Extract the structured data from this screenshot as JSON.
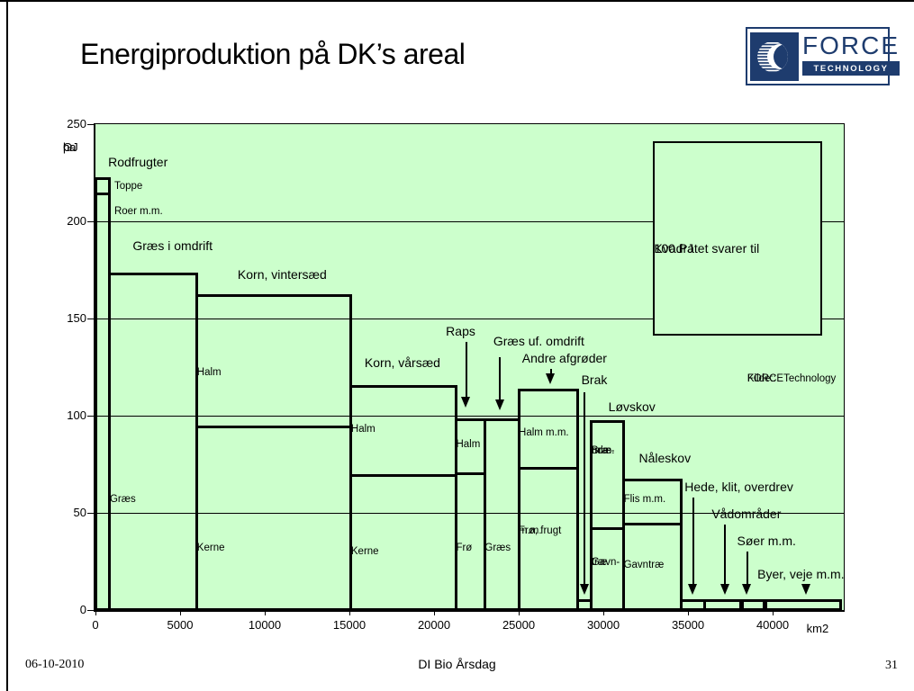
{
  "slide": {
    "title": "Energiproduktion på DK’s areal",
    "footer": {
      "date": "06-10-2010",
      "center": "DI Bio Årsdag",
      "page": "31"
    }
  },
  "logo": {
    "name": "FORCE",
    "sub": "TECHNOLOGY",
    "icon": "globe-icon",
    "navy": "#1e3c6e"
  },
  "chart_data": {
    "type": "bar",
    "subtype": "variable-width-stacked-bar-marimekko",
    "title": "Energiproduktion på DK’s areal",
    "xlabel": "km2",
    "ylabel_lines": [
      "GJ",
      "pr.",
      "ha"
    ],
    "xlim": [
      0,
      44200
    ],
    "ylim": [
      0,
      250
    ],
    "x_ticks": [
      0,
      5000,
      10000,
      15000,
      20000,
      25000,
      30000,
      35000,
      40000
    ],
    "y_ticks": [
      0,
      50,
      100,
      150,
      200,
      250
    ],
    "x_unit_label": "km2",
    "x_unit_pos": 42000,
    "grid": "horizontal",
    "colors": {
      "plot_bg": "#ccffcc",
      "bar_fill": "#ccffcc",
      "line": "#000000"
    },
    "segments": [
      {
        "name": "Rodfrugter",
        "x0": 0,
        "x1": 850,
        "sections": [
          {
            "lines": [
              "Roer m.m."
            ],
            "y0": 0,
            "y1": 214,
            "label_y": 205,
            "outside": true
          },
          {
            "lines": [
              "Toppe"
            ],
            "y0": 214,
            "y1": 222,
            "label_y": 218,
            "outside": true
          }
        ]
      },
      {
        "name": "Græs i omdrift",
        "x0": 850,
        "x1": 6000,
        "sections": [
          {
            "lines": [
              "Græs"
            ],
            "y0": 0,
            "y1": 173,
            "label_y": 57
          }
        ]
      },
      {
        "name": "Korn, vintersæd",
        "x0": 6000,
        "x1": 15100,
        "sections": [
          {
            "lines": [
              "Kerne"
            ],
            "y0": 0,
            "y1": 94,
            "label_y": 32
          },
          {
            "lines": [
              "Halm"
            ],
            "y0": 94,
            "y1": 162,
            "label_y": 122
          }
        ]
      },
      {
        "name": "Korn, vårsæd",
        "x0": 15100,
        "x1": 21300,
        "sections": [
          {
            "lines": [
              "Kerne"
            ],
            "y0": 0,
            "y1": 69,
            "label_y": 30
          },
          {
            "lines": [
              "Halm"
            ],
            "y0": 69,
            "y1": 115,
            "label_y": 93
          }
        ]
      },
      {
        "name": "Raps",
        "x0": 21300,
        "x1": 23000,
        "sections": [
          {
            "lines": [
              "Frø"
            ],
            "y0": 0,
            "y1": 70,
            "label_y": 32
          },
          {
            "lines": [
              "Halm"
            ],
            "y0": 70,
            "y1": 98,
            "label_y": 85
          }
        ]
      },
      {
        "name": "Græs uf. omdrift",
        "x0": 23000,
        "x1": 25000,
        "sections": [
          {
            "lines": [
              "Græs"
            ],
            "y0": 0,
            "y1": 98,
            "label_y": 32
          }
        ]
      },
      {
        "name": "Andre afgrøder",
        "x0": 25000,
        "x1": 28500,
        "sections": [
          {
            "lines": [
              "Frø, frugt",
              "m.m."
            ],
            "y0": 0,
            "y1": 73,
            "label_y": 36
          },
          {
            "lines": [
              "Halm m.m."
            ],
            "y0": 73,
            "y1": 113,
            "label_y": 91
          }
        ]
      },
      {
        "name": "Brak",
        "x0": 28500,
        "x1": 29300,
        "sections": [
          {
            "lines": [],
            "y0": 0,
            "y1": 5
          }
        ]
      },
      {
        "name": "Løvskov",
        "x0": 29300,
        "x1": 31200,
        "sections": [
          {
            "lines": [
              "Gavn-",
              "træ"
            ],
            "y0": 0,
            "y1": 42,
            "label_y": 20
          },
          {
            "lines": [
              "Bræ-",
              "nde",
              "m.m."
            ],
            "y0": 42,
            "y1": 97,
            "label_y": 72
          }
        ]
      },
      {
        "name": "Nåleskov",
        "x0": 31200,
        "x1": 34600,
        "sections": [
          {
            "lines": [
              "Gavntræ"
            ],
            "y0": 0,
            "y1": 44,
            "label_y": 23
          },
          {
            "lines": [
              "Flis m.m."
            ],
            "y0": 44,
            "y1": 67,
            "label_y": 57
          }
        ]
      },
      {
        "name": "Hede, klit, overdrev",
        "x0": 34600,
        "x1": 36000,
        "sections": [
          {
            "lines": [],
            "y0": 0,
            "y1": 5
          }
        ]
      },
      {
        "name": "Vådområder",
        "x0": 36000,
        "x1": 38100,
        "sections": [
          {
            "lines": [],
            "y0": 0,
            "y1": 5
          }
        ]
      },
      {
        "name": "Søer m.m.",
        "x0": 38200,
        "x1": 39500,
        "sections": [
          {
            "lines": [],
            "y0": 0,
            "y1": 5
          }
        ]
      },
      {
        "name": "Byer, veje m.m.",
        "x0": 39600,
        "x1": 44000,
        "sections": [
          {
            "lines": [],
            "y0": 0,
            "y1": 5
          }
        ]
      }
    ],
    "annotations": [
      {
        "text": "Rodfrugter",
        "tx": 750,
        "ty": 230
      },
      {
        "text": "Græs i omdrift",
        "tx": 2200,
        "ty": 187
      },
      {
        "text": "Korn, vintersæd",
        "tx": 8400,
        "ty": 172
      },
      {
        "text": "Korn, vårsæd",
        "tx": 15900,
        "ty": 127
      },
      {
        "text": "Raps",
        "tx": 20700,
        "ty": 143,
        "arrow": {
          "x": 21900,
          "from": 138,
          "to": 104
        }
      },
      {
        "text": "Græs uf. omdrift",
        "tx": 23500,
        "ty": 138,
        "arrow": {
          "x": 23900,
          "from": 130,
          "to": 103
        }
      },
      {
        "text": "Andre afgrøder",
        "tx": 25200,
        "ty": 129,
        "arrow": {
          "x": 26900,
          "from": 124,
          "to": 116
        }
      },
      {
        "text": "Brak",
        "tx": 28700,
        "ty": 118,
        "arrow": {
          "x": 28900,
          "from": 112,
          "to": 8
        }
      },
      {
        "text": "Løvskov",
        "tx": 30300,
        "ty": 104
      },
      {
        "text": "Nåleskov",
        "tx": 32100,
        "ty": 78
      },
      {
        "text": "Hede, klit, overdrev",
        "tx": 34800,
        "ty": 63,
        "arrow": {
          "x": 35300,
          "from": 58,
          "to": 8
        }
      },
      {
        "text": "Vådområder",
        "tx": 36400,
        "ty": 49,
        "arrow": {
          "x": 37200,
          "from": 44,
          "to": 8
        }
      },
      {
        "text": "Søer m.m.",
        "tx": 37900,
        "ty": 35,
        "arrow": {
          "x": 38500,
          "from": 30,
          "to": 8
        }
      },
      {
        "text": "Byer, veje m.m.",
        "tx": 39100,
        "ty": 18,
        "arrow": {
          "x": 42000,
          "from": 13,
          "to": 8
        }
      }
    ],
    "legend_square": {
      "lines": [
        "Kvadratet svarer til",
        "100 PJ"
      ],
      "x0": 32900,
      "y0": 141,
      "w_km2": 10000,
      "h_gj": 100
    },
    "source_note": {
      "lines": [
        "Kilde::",
        "FORCETechnology"
      ],
      "tx": 38500,
      "ty": 119
    }
  }
}
